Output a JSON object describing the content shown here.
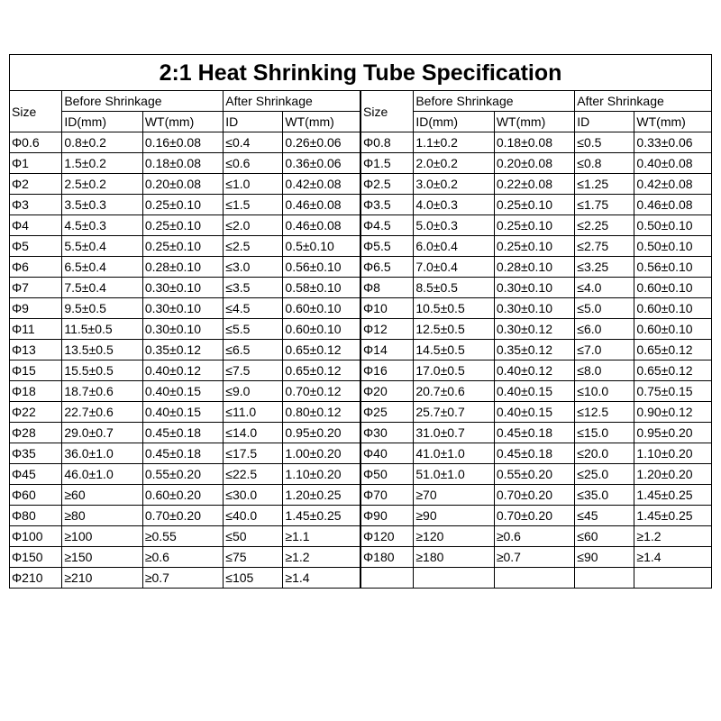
{
  "title": "2:1 Heat Shrinking Tube Specification",
  "headers": {
    "size": "Size",
    "before": "Before Shrinkage",
    "after": "After Shrinkage",
    "id": "ID(mm)",
    "wt": "WT(mm)",
    "aid": "ID",
    "awt": "WT(mm)"
  },
  "left_rows": [
    [
      "Φ0.6",
      "0.8±0.2",
      "0.16±0.08",
      "≤0.4",
      "0.26±0.06"
    ],
    [
      "Φ1",
      "1.5±0.2",
      "0.18±0.08",
      "≤0.6",
      "0.36±0.06"
    ],
    [
      "Φ2",
      "2.5±0.2",
      "0.20±0.08",
      "≤1.0",
      "0.42±0.08"
    ],
    [
      "Φ3",
      "3.5±0.3",
      "0.25±0.10",
      "≤1.5",
      "0.46±0.08"
    ],
    [
      "Φ4",
      "4.5±0.3",
      "0.25±0.10",
      "≤2.0",
      "0.46±0.08"
    ],
    [
      "Φ5",
      "5.5±0.4",
      "0.25±0.10",
      "≤2.5",
      "0.5±0.10"
    ],
    [
      "Φ6",
      "6.5±0.4",
      "0.28±0.10",
      "≤3.0",
      "0.56±0.10"
    ],
    [
      "Φ7",
      "7.5±0.4",
      "0.30±0.10",
      "≤3.5",
      "0.58±0.10"
    ],
    [
      "Φ9",
      "9.5±0.5",
      "0.30±0.10",
      "≤4.5",
      "0.60±0.10"
    ],
    [
      "Φ11",
      "11.5±0.5",
      "0.30±0.10",
      "≤5.5",
      "0.60±0.10"
    ],
    [
      "Φ13",
      "13.5±0.5",
      "0.35±0.12",
      "≤6.5",
      "0.65±0.12"
    ],
    [
      "Φ15",
      "15.5±0.5",
      "0.40±0.12",
      "≤7.5",
      "0.65±0.12"
    ],
    [
      "Φ18",
      "18.7±0.6",
      "0.40±0.15",
      "≤9.0",
      "0.70±0.12"
    ],
    [
      "Φ22",
      "22.7±0.6",
      "0.40±0.15",
      "≤11.0",
      "0.80±0.12"
    ],
    [
      "Φ28",
      "29.0±0.7",
      "0.45±0.18",
      "≤14.0",
      "0.95±0.20"
    ],
    [
      "Φ35",
      "36.0±1.0",
      "0.45±0.18",
      "≤17.5",
      "1.00±0.20"
    ],
    [
      "Φ45",
      "46.0±1.0",
      "0.55±0.20",
      "≤22.5",
      "1.10±0.20"
    ],
    [
      "Φ60",
      "≥60",
      "0.60±0.20",
      "≤30.0",
      "1.20±0.25"
    ],
    [
      "Φ80",
      "≥80",
      "0.70±0.20",
      "≤40.0",
      "1.45±0.25"
    ],
    [
      "Φ100",
      "≥100",
      "≥0.55",
      "≤50",
      "≥1.1"
    ],
    [
      "Φ150",
      "≥150",
      "≥0.6",
      "≤75",
      "≥1.2"
    ],
    [
      "Φ210",
      "≥210",
      "≥0.7",
      "≤105",
      "≥1.4"
    ]
  ],
  "right_rows": [
    [
      "Φ0.8",
      "1.1±0.2",
      "0.18±0.08",
      "≤0.5",
      "0.33±0.06"
    ],
    [
      "Φ1.5",
      "2.0±0.2",
      "0.20±0.08",
      "≤0.8",
      "0.40±0.08"
    ],
    [
      "Φ2.5",
      "3.0±0.2",
      "0.22±0.08",
      "≤1.25",
      "0.42±0.08"
    ],
    [
      "Φ3.5",
      "4.0±0.3",
      "0.25±0.10",
      "≤1.75",
      "0.46±0.08"
    ],
    [
      "Φ4.5",
      "5.0±0.3",
      "0.25±0.10",
      "≤2.25",
      "0.50±0.10"
    ],
    [
      "Φ5.5",
      "6.0±0.4",
      "0.25±0.10",
      "≤2.75",
      "0.50±0.10"
    ],
    [
      "Φ6.5",
      "7.0±0.4",
      "0.28±0.10",
      "≤3.25",
      "0.56±0.10"
    ],
    [
      "Φ8",
      "8.5±0.5",
      "0.30±0.10",
      "≤4.0",
      "0.60±0.10"
    ],
    [
      "Φ10",
      "10.5±0.5",
      "0.30±0.10",
      "≤5.0",
      "0.60±0.10"
    ],
    [
      "Φ12",
      "12.5±0.5",
      "0.30±0.12",
      "≤6.0",
      "0.60±0.10"
    ],
    [
      "Φ14",
      "14.5±0.5",
      "0.35±0.12",
      "≤7.0",
      "0.65±0.12"
    ],
    [
      "Φ16",
      "17.0±0.5",
      "0.40±0.12",
      "≤8.0",
      "0.65±0.12"
    ],
    [
      "Φ20",
      "20.7±0.6",
      "0.40±0.15",
      "≤10.0",
      "0.75±0.15"
    ],
    [
      "Φ25",
      "25.7±0.7",
      "0.40±0.15",
      "≤12.5",
      "0.90±0.12"
    ],
    [
      "Φ30",
      "31.0±0.7",
      "0.45±0.18",
      "≤15.0",
      "0.95±0.20"
    ],
    [
      "Φ40",
      "41.0±1.0",
      "0.45±0.18",
      "≤20.0",
      "1.10±0.20"
    ],
    [
      "Φ50",
      "51.0±1.0",
      "0.55±0.20",
      "≤25.0",
      "1.20±0.20"
    ],
    [
      "Φ70",
      "≥70",
      "0.70±0.20",
      "≤35.0",
      "1.45±0.25"
    ],
    [
      "Φ90",
      "≥90",
      "0.70±0.20",
      "≤45",
      "1.45±0.25"
    ],
    [
      "Φ120",
      "≥120",
      "≥0.6",
      "≤60",
      "≥1.2"
    ],
    [
      "Φ180",
      "≥180",
      "≥0.7",
      "≤90",
      "≥1.4"
    ],
    [
      "",
      "",
      "",
      "",
      ""
    ]
  ],
  "styling": {
    "border_color": "#000000",
    "background_color": "#ffffff",
    "text_color": "#000000",
    "title_fontsize": 25,
    "cell_fontsize": 14,
    "font_family": "Arial"
  }
}
